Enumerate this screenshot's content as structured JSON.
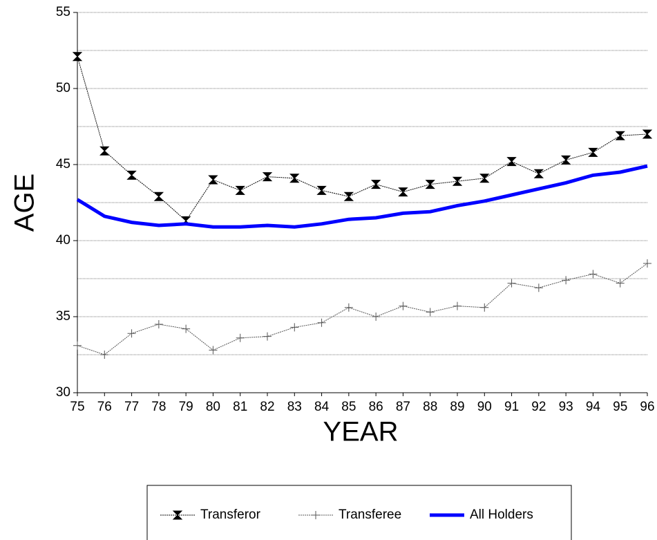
{
  "chart_data": {
    "type": "line",
    "x_label": "YEAR",
    "y_label": "AGE",
    "categories": [
      "75",
      "76",
      "77",
      "78",
      "79",
      "80",
      "81",
      "82",
      "83",
      "84",
      "85",
      "86",
      "87",
      "88",
      "89",
      "90",
      "91",
      "92",
      "93",
      "94",
      "95",
      "96"
    ],
    "series": [
      {
        "name": "Transferor",
        "color": "#000000",
        "marker": "bowtie",
        "values": [
          52.1,
          45.9,
          44.3,
          42.9,
          41.3,
          44.0,
          43.3,
          44.2,
          44.1,
          43.3,
          42.9,
          43.7,
          43.2,
          43.7,
          43.9,
          44.1,
          45.2,
          44.4,
          45.3,
          45.8,
          46.9,
          47.0
        ]
      },
      {
        "name": "Transferee",
        "color": "#555555",
        "marker": "plus",
        "values": [
          33.1,
          32.5,
          33.9,
          34.5,
          34.2,
          32.8,
          33.6,
          33.7,
          34.3,
          34.6,
          35.6,
          35.0,
          35.7,
          35.3,
          35.7,
          35.6,
          37.2,
          36.9,
          37.4,
          37.8,
          37.2,
          38.5
        ]
      },
      {
        "name": "All Holders",
        "color": "#0000ff",
        "marker": "none",
        "values": [
          42.7,
          41.6,
          41.2,
          41.0,
          41.1,
          40.9,
          40.9,
          41.0,
          40.9,
          41.1,
          41.4,
          41.5,
          41.8,
          41.9,
          42.3,
          42.6,
          43.0,
          43.4,
          43.8,
          44.3,
          44.5,
          44.9
        ]
      }
    ],
    "ylim": [
      30,
      55
    ],
    "yticks": [
      30,
      35,
      40,
      45,
      50,
      55
    ],
    "minor_yticks": [
      32.5,
      37.5,
      42.5,
      47.5,
      52.5
    ],
    "grid": true,
    "legend": "bottom"
  }
}
